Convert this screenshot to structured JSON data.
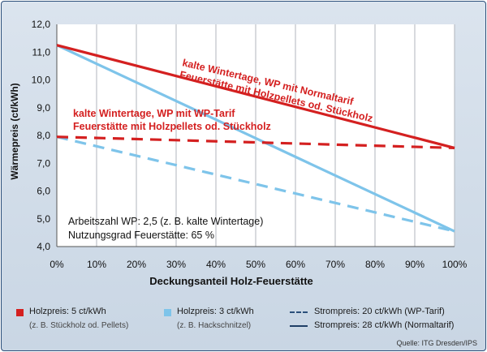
{
  "chart_data": {
    "type": "line",
    "xlabel": "Deckungsanteil Holz-Feuerstätte",
    "ylabel": "Wärmepreis (ct/kWh)",
    "xlim": [
      0,
      100
    ],
    "ylim": [
      4.0,
      12.0
    ],
    "x_ticks": [
      "0%",
      "10%",
      "20%",
      "30%",
      "40%",
      "50%",
      "60%",
      "70%",
      "80%",
      "90%",
      "100%"
    ],
    "y_ticks": [
      "4,0",
      "5,0",
      "6,0",
      "7,0",
      "8,0",
      "9,0",
      "10,0",
      "11,0",
      "12,0"
    ],
    "grid": "vertical",
    "series": [
      {
        "color": "#d42020",
        "style": "solid",
        "x": [
          0,
          100
        ],
        "y": [
          11.25,
          7.55
        ]
      },
      {
        "color": "#d42020",
        "style": "dashed",
        "x": [
          0,
          100
        ],
        "y": [
          7.95,
          7.55
        ]
      },
      {
        "color": "#7ec4ea",
        "style": "solid",
        "x": [
          0,
          100
        ],
        "y": [
          11.25,
          4.55
        ]
      },
      {
        "color": "#7ec4ea",
        "style": "dashed",
        "x": [
          0,
          100
        ],
        "y": [
          7.95,
          4.55
        ]
      }
    ],
    "annotations": [
      {
        "lines": [
          "kalte Wintertage, WP mit Normaltarif",
          "Feuerstätte mit Holzpellets od. Stückholz"
        ],
        "color": "#d42020"
      },
      {
        "lines": [
          "kalte Wintertage, WP mit WP-Tarif",
          "Feuerstätte mit Holzpellets od. Stückholz"
        ],
        "color": "#d42020"
      },
      {
        "lines": [
          "Arbeitszahl WP: 2,5 (z. B. kalte Wintertage)",
          "Nutzungsgrad Feuerstätte: 65 %"
        ],
        "color": "#111111"
      }
    ]
  },
  "legend": {
    "red": {
      "label": "Holzpreis: 5 ct/kWh",
      "sub": "(z. B. Stückholz od. Pellets)",
      "color": "#d42020"
    },
    "blue": {
      "label": "Holzpreis: 3 ct/kWh",
      "sub": "(z. B. Hackschnitzel)",
      "color": "#7ec4ea"
    },
    "dashed": {
      "label": "Strompreis: 20 ct/kWh (WP-Tarif)"
    },
    "solid": {
      "label": "Strompreis: 28 ct/kWh (Normaltarif)"
    }
  },
  "source": "Quelle: ITG Dresden/IPS"
}
